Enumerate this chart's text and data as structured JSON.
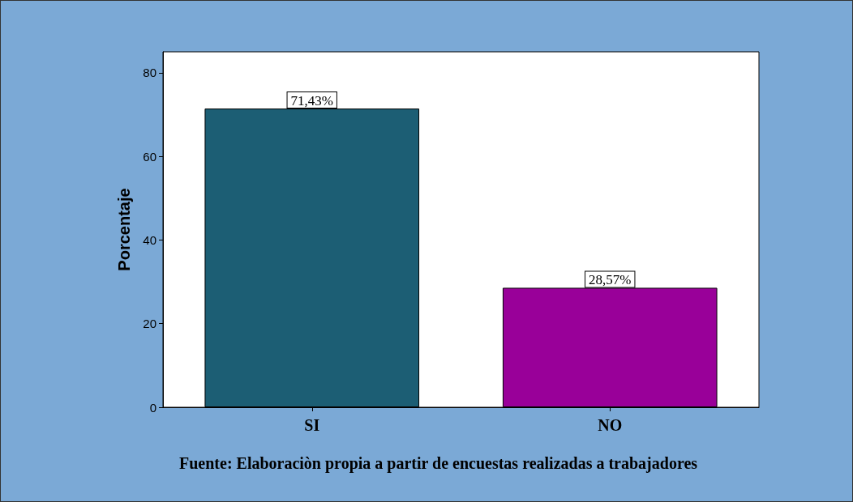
{
  "chart_data": {
    "type": "bar",
    "ylabel": "Porcentaje",
    "categories": [
      "SI",
      "NO"
    ],
    "values": [
      71.43,
      28.57
    ],
    "colors": [
      "#1c5e74",
      "#990099"
    ],
    "value_labels": [
      "71,43%",
      "28,57%"
    ],
    "ylim": [
      0,
      85
    ],
    "yticks": [
      0,
      20,
      40,
      60,
      80
    ],
    "annotations": [
      "Fuente: Elaboraciòn propia a partir de encuestas realizadas a trabajadores"
    ]
  }
}
